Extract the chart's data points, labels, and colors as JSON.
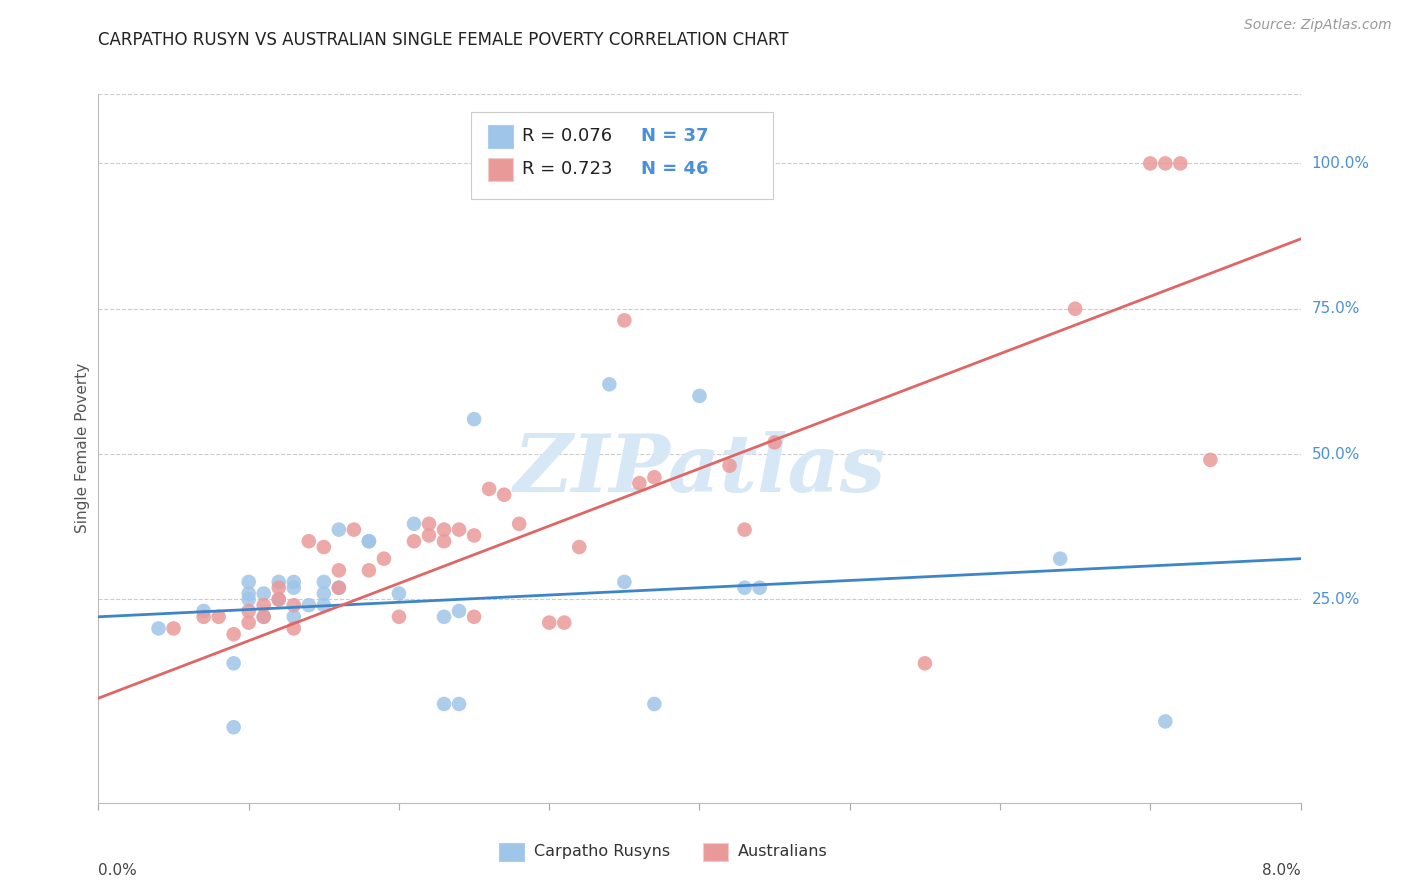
{
  "title": "CARPATHO RUSYN VS AUSTRALIAN SINGLE FEMALE POVERTY CORRELATION CHART",
  "source": "Source: ZipAtlas.com",
  "ylabel": "Single Female Poverty",
  "legend_label1": "Carpatho Rusyns",
  "legend_label2": "Australians",
  "legend_r1_val": "0.076",
  "legend_n1_val": "37",
  "legend_r2_val": "0.723",
  "legend_n2_val": "46",
  "ytick_labels": [
    "25.0%",
    "50.0%",
    "75.0%",
    "100.0%"
  ],
  "ytick_values": [
    0.25,
    0.5,
    0.75,
    1.0
  ],
  "xlim": [
    0.0,
    0.08
  ],
  "ylim": [
    -0.1,
    1.12
  ],
  "blue_scatter_color": "#9fc5e8",
  "pink_scatter_color": "#ea9999",
  "blue_line_color": "#3d85c8",
  "pink_line_color": "#e06666",
  "legend_text_color": "#4a90d9",
  "right_label_color": "#4a90d9",
  "watermark_color": "#d6e8f5",
  "background_color": "#ffffff",
  "grid_color": "#cccccc",
  "blue_points_x": [
    0.004,
    0.007,
    0.009,
    0.009,
    0.01,
    0.01,
    0.01,
    0.011,
    0.011,
    0.012,
    0.012,
    0.013,
    0.013,
    0.013,
    0.014,
    0.015,
    0.015,
    0.015,
    0.016,
    0.016,
    0.018,
    0.018,
    0.02,
    0.021,
    0.023,
    0.023,
    0.024,
    0.024,
    0.025,
    0.034,
    0.035,
    0.037,
    0.04,
    0.043,
    0.044,
    0.064,
    0.071
  ],
  "blue_points_y": [
    0.2,
    0.23,
    0.03,
    0.14,
    0.25,
    0.26,
    0.28,
    0.22,
    0.26,
    0.25,
    0.28,
    0.22,
    0.27,
    0.28,
    0.24,
    0.26,
    0.28,
    0.24,
    0.27,
    0.37,
    0.35,
    0.35,
    0.26,
    0.38,
    0.22,
    0.07,
    0.07,
    0.23,
    0.56,
    0.62,
    0.28,
    0.07,
    0.6,
    0.27,
    0.27,
    0.32,
    0.04
  ],
  "pink_points_x": [
    0.005,
    0.007,
    0.008,
    0.009,
    0.01,
    0.01,
    0.011,
    0.011,
    0.012,
    0.012,
    0.013,
    0.013,
    0.014,
    0.015,
    0.016,
    0.016,
    0.017,
    0.018,
    0.019,
    0.02,
    0.021,
    0.022,
    0.022,
    0.023,
    0.023,
    0.024,
    0.025,
    0.025,
    0.026,
    0.027,
    0.028,
    0.03,
    0.031,
    0.032,
    0.035,
    0.036,
    0.037,
    0.042,
    0.043,
    0.045,
    0.055,
    0.065,
    0.07,
    0.071,
    0.072,
    0.074
  ],
  "pink_points_y": [
    0.2,
    0.22,
    0.22,
    0.19,
    0.21,
    0.23,
    0.22,
    0.24,
    0.25,
    0.27,
    0.24,
    0.2,
    0.35,
    0.34,
    0.27,
    0.3,
    0.37,
    0.3,
    0.32,
    0.22,
    0.35,
    0.36,
    0.38,
    0.35,
    0.37,
    0.37,
    0.36,
    0.22,
    0.44,
    0.43,
    0.38,
    0.21,
    0.21,
    0.34,
    0.73,
    0.45,
    0.46,
    0.48,
    0.37,
    0.52,
    0.14,
    0.75,
    1.0,
    1.0,
    1.0,
    0.49
  ],
  "blue_line_x": [
    0.0,
    0.08
  ],
  "blue_line_y": [
    0.22,
    0.32
  ],
  "pink_line_x": [
    0.0,
    0.08
  ],
  "pink_line_y": [
    0.08,
    0.87
  ],
  "xtick_positions": [
    0.0,
    0.01,
    0.02,
    0.03,
    0.04,
    0.05,
    0.06,
    0.07,
    0.08
  ]
}
